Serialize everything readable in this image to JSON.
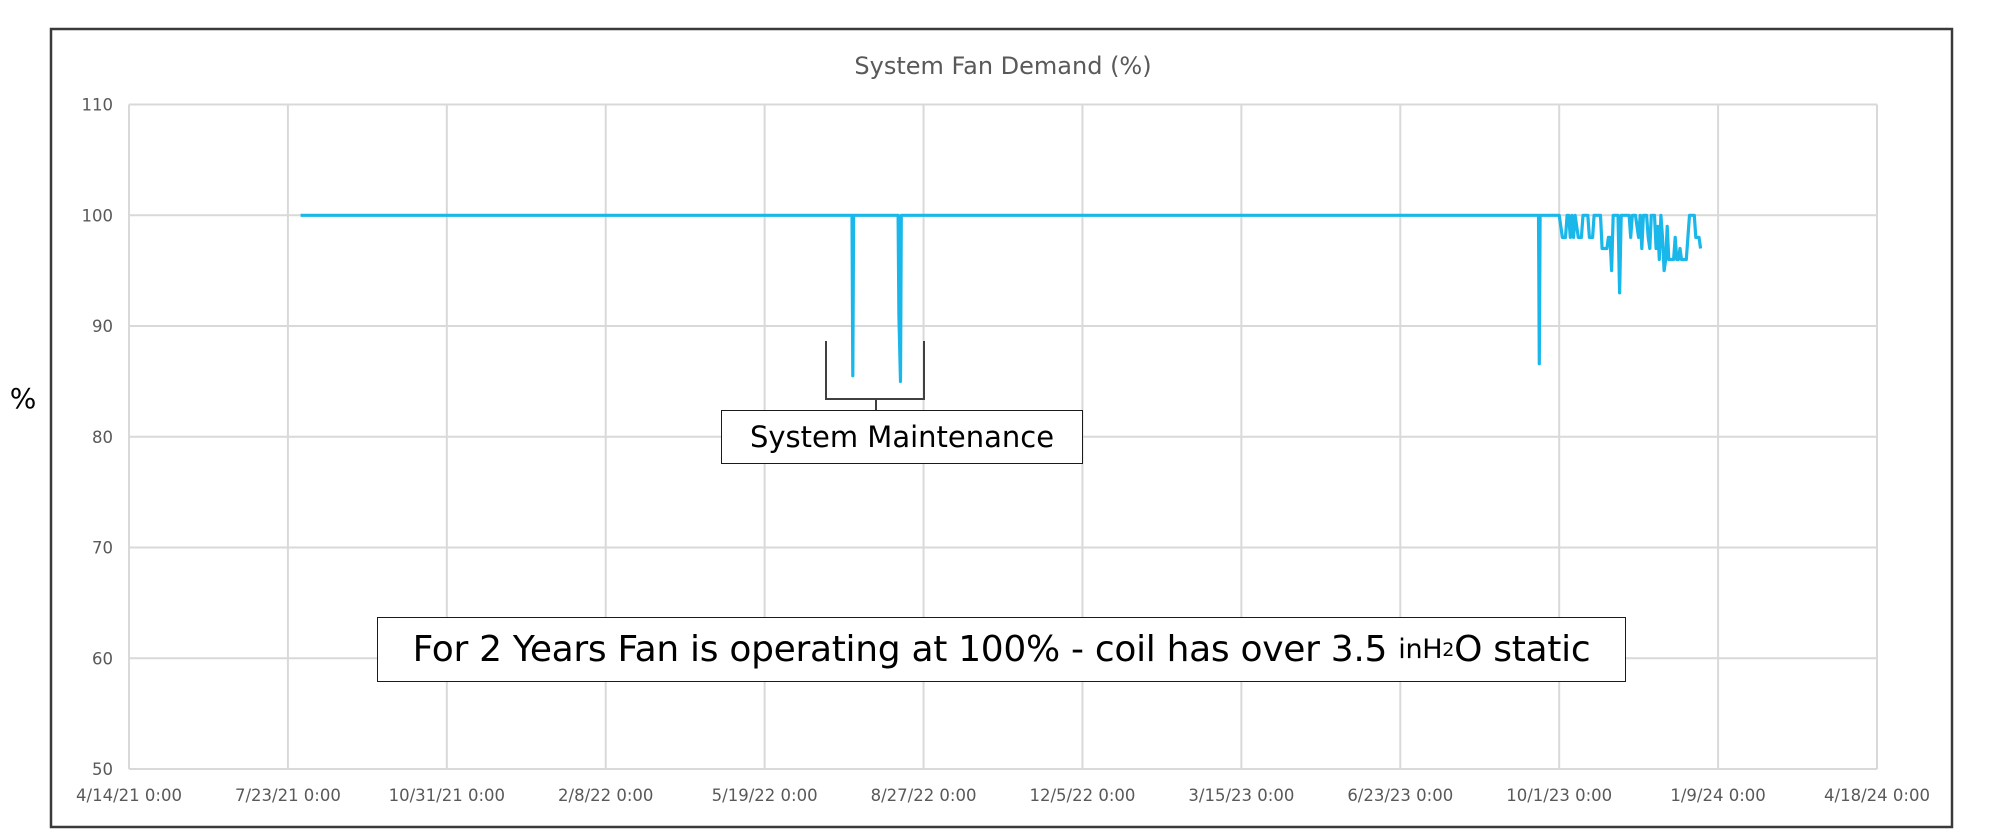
{
  "chart_data": {
    "type": "line",
    "title": "System Fan Demand (%)",
    "xlabel": "",
    "ylabel": "%",
    "ylim": [
      50,
      110
    ],
    "yticks": [
      50,
      60,
      70,
      80,
      90,
      100,
      110
    ],
    "xticks": [
      "4/14/21 0:00",
      "7/23/21 0:00",
      "10/31/21 0:00",
      "2/8/22 0:00",
      "5/19/22 0:00",
      "8/27/22 0:00",
      "12/5/22 0:00",
      "3/15/23 0:00",
      "6/23/23 0:00",
      "10/1/23 0:00",
      "1/9/24 0:00",
      "4/18/24 0:00"
    ],
    "x_unit": "days since 4/14/21",
    "x_range_days": [
      0,
      1100
    ],
    "grid": true,
    "legend": null,
    "series": [
      {
        "name": "System Fan Demand",
        "color": "#1ab7ea",
        "points": [
          [
            108,
            100
          ],
          [
            455,
            100
          ],
          [
            455.5,
            85.5
          ],
          [
            456,
            100
          ],
          [
            484,
            100
          ],
          [
            484.5,
            91
          ],
          [
            485.5,
            85
          ],
          [
            486,
            100
          ],
          [
            887,
            100
          ],
          [
            887.5,
            86.6
          ],
          [
            888,
            100
          ],
          [
            900,
            100
          ],
          [
            902,
            98
          ],
          [
            904,
            98
          ],
          [
            905,
            100
          ],
          [
            906,
            100
          ],
          [
            907,
            98
          ],
          [
            908,
            100
          ],
          [
            909,
            98
          ],
          [
            910,
            100
          ],
          [
            912,
            98
          ],
          [
            914,
            98
          ],
          [
            915,
            100
          ],
          [
            918,
            100
          ],
          [
            919,
            98
          ],
          [
            921,
            98
          ],
          [
            922,
            100
          ],
          [
            926,
            100
          ],
          [
            927,
            97
          ],
          [
            930,
            97
          ],
          [
            931,
            98
          ],
          [
            932,
            98
          ],
          [
            933,
            95
          ],
          [
            934,
            100
          ],
          [
            937,
            100
          ],
          [
            938,
            93
          ],
          [
            939,
            100
          ],
          [
            944,
            100
          ],
          [
            945,
            98
          ],
          [
            946,
            100
          ],
          [
            948,
            100
          ],
          [
            949,
            99
          ],
          [
            950,
            98
          ],
          [
            951,
            100
          ],
          [
            952,
            97
          ],
          [
            953,
            100
          ],
          [
            955,
            100
          ],
          [
            956,
            98
          ],
          [
            957,
            97
          ],
          [
            958,
            100
          ],
          [
            960,
            100
          ],
          [
            961,
            97
          ],
          [
            962,
            99
          ],
          [
            963,
            96
          ],
          [
            964,
            100
          ],
          [
            965,
            98
          ],
          [
            966,
            95
          ],
          [
            967,
            96
          ],
          [
            968,
            99
          ],
          [
            969,
            96
          ],
          [
            972,
            96
          ],
          [
            973,
            98
          ],
          [
            974,
            96
          ],
          [
            975,
            96
          ],
          [
            976,
            97
          ],
          [
            977,
            96
          ],
          [
            980,
            96
          ],
          [
            981,
            98
          ],
          [
            982,
            100
          ],
          [
            985,
            100
          ],
          [
            986,
            98
          ],
          [
            988,
            98
          ],
          [
            989,
            97
          ]
        ]
      }
    ],
    "annotations": [
      {
        "text": "System Maintenance",
        "type": "bracket-callout",
        "span_days": [
          440,
          501
        ]
      },
      {
        "text_prefix": "For 2 Years Fan is operating at 100% - coil has over 3.5 ",
        "unit_main": "inH",
        "unit_sub": "2",
        "unit_tail": "O",
        "text_suffix": " static"
      }
    ]
  },
  "labels": {
    "title": "System Fan Demand (%)",
    "y_axis": "%",
    "maintenance": "System Maintenance",
    "main_note_prefix": "For 2 Years Fan is operating at 100% - coil has over 3.5 ",
    "main_note_unit": "inH",
    "main_note_sub": "2",
    "main_note_unit_tail": "O",
    "main_note_suffix": " static"
  }
}
